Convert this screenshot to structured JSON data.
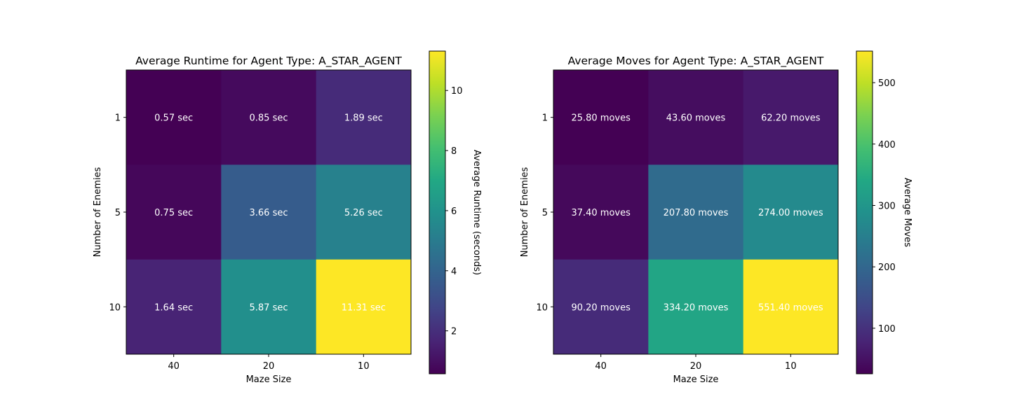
{
  "chart_data": [
    {
      "type": "heatmap",
      "title": "Average Runtime for Agent Type: A_STAR_AGENT",
      "xlabel": "Maze Size",
      "ylabel": "Number of Enemies",
      "x_categories": [
        "40",
        "20",
        "10"
      ],
      "y_categories": [
        "1",
        "5",
        "10"
      ],
      "values": [
        [
          0.57,
          0.85,
          1.89
        ],
        [
          0.75,
          3.66,
          5.26
        ],
        [
          1.64,
          5.87,
          11.31
        ]
      ],
      "cell_labels": [
        [
          "0.57 sec",
          "0.85 sec",
          "1.89 sec"
        ],
        [
          "0.75 sec",
          "3.66 sec",
          "5.26 sec"
        ],
        [
          "1.64 sec",
          "5.87 sec",
          "11.31 sec"
        ]
      ],
      "colormap": "viridis",
      "colorbar": {
        "label": "Average Runtime (seconds)",
        "range": [
          0.57,
          11.31
        ],
        "ticks": [
          2,
          4,
          6,
          8,
          10
        ],
        "tick_labels": [
          "2",
          "4",
          "6",
          "8",
          "10"
        ]
      }
    },
    {
      "type": "heatmap",
      "title": "Average Moves for Agent Type: A_STAR_AGENT",
      "xlabel": "Maze Size",
      "ylabel": "Number of Enemies",
      "x_categories": [
        "40",
        "20",
        "10"
      ],
      "y_categories": [
        "1",
        "5",
        "10"
      ],
      "values": [
        [
          25.8,
          43.6,
          62.2
        ],
        [
          37.4,
          207.8,
          274.0
        ],
        [
          90.2,
          334.2,
          551.4
        ]
      ],
      "cell_labels": [
        [
          "25.80 moves",
          "43.60 moves",
          "62.20 moves"
        ],
        [
          "37.40 moves",
          "207.80 moves",
          "274.00 moves"
        ],
        [
          "90.20 moves",
          "334.20 moves",
          "551.40 moves"
        ]
      ],
      "colormap": "viridis",
      "colorbar": {
        "label": "Average Moves",
        "range": [
          25.8,
          551.4
        ],
        "ticks": [
          100,
          200,
          300,
          400,
          500
        ],
        "tick_labels": [
          "100",
          "200",
          "300",
          "400",
          "500"
        ]
      }
    }
  ]
}
